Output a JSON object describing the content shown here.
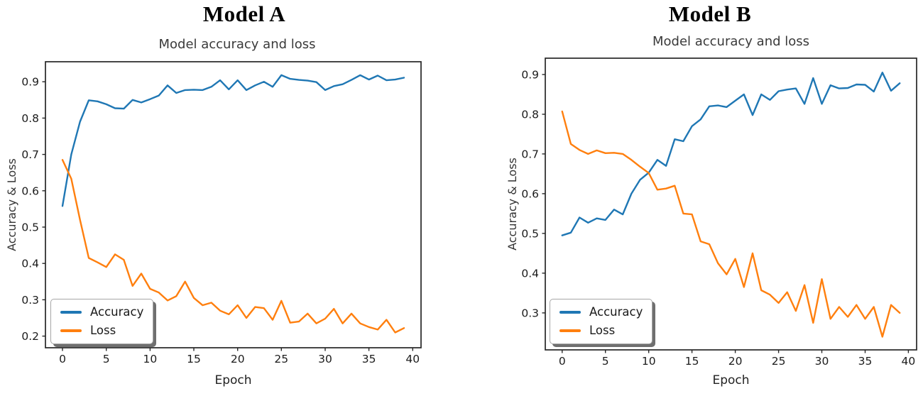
{
  "figure": {
    "background": "#ffffff",
    "spine_color": "#262626",
    "tick_label_color": "#1c1c1c"
  },
  "chart_data": [
    {
      "id": "model-a",
      "type": "line",
      "figure_title": "Model A",
      "title": "Model accuracy and loss",
      "xlabel": "Epoch",
      "ylabel": "Accuracy & Loss",
      "grid": false,
      "legend_position": "lower left",
      "xlim": [
        -1.95,
        40.95
      ],
      "ylim": [
        0.168,
        0.955
      ],
      "xticks": [
        0,
        5,
        10,
        15,
        20,
        25,
        30,
        35,
        40
      ],
      "yticks": [
        0.2,
        0.3,
        0.4,
        0.5,
        0.6,
        0.7,
        0.8,
        0.9
      ],
      "ytick_labels": [
        "0.2",
        "0.3",
        "0.4",
        "0.5",
        "0.6",
        "0.7",
        "0.8",
        "0.9"
      ],
      "x": [
        0,
        1,
        2,
        3,
        4,
        5,
        6,
        7,
        8,
        9,
        10,
        11,
        12,
        13,
        14,
        15,
        16,
        17,
        18,
        19,
        20,
        21,
        22,
        23,
        24,
        25,
        26,
        27,
        28,
        29,
        30,
        31,
        32,
        33,
        34,
        35,
        36,
        37,
        38,
        39
      ],
      "series": [
        {
          "name": "Accuracy",
          "color": "#1f77b4",
          "values": [
            0.558,
            0.7,
            0.79,
            0.849,
            0.846,
            0.838,
            0.827,
            0.826,
            0.85,
            0.843,
            0.852,
            0.862,
            0.89,
            0.869,
            0.877,
            0.878,
            0.877,
            0.886,
            0.904,
            0.879,
            0.904,
            0.877,
            0.89,
            0.9,
            0.886,
            0.918,
            0.908,
            0.905,
            0.903,
            0.899,
            0.877,
            0.888,
            0.893,
            0.905,
            0.918,
            0.906,
            0.917,
            0.904,
            0.906,
            0.911
          ]
        },
        {
          "name": "Loss",
          "color": "#ff7f0e",
          "values": [
            0.685,
            0.633,
            0.52,
            0.415,
            0.403,
            0.39,
            0.425,
            0.41,
            0.338,
            0.372,
            0.33,
            0.32,
            0.298,
            0.31,
            0.35,
            0.305,
            0.285,
            0.292,
            0.27,
            0.26,
            0.285,
            0.25,
            0.28,
            0.277,
            0.245,
            0.297,
            0.237,
            0.24,
            0.262,
            0.235,
            0.248,
            0.275,
            0.235,
            0.262,
            0.235,
            0.225,
            0.218,
            0.245,
            0.21,
            0.222
          ]
        }
      ]
    },
    {
      "id": "model-b",
      "type": "line",
      "figure_title": "Model B",
      "title": "Model accuracy and loss",
      "xlabel": "Epoch",
      "ylabel": "Accuracy & Loss",
      "grid": false,
      "legend_position": "lower left",
      "xlim": [
        -1.95,
        40.95
      ],
      "ylim": [
        0.207,
        0.941
      ],
      "xticks": [
        0,
        5,
        10,
        15,
        20,
        25,
        30,
        35,
        40
      ],
      "yticks": [
        0.3,
        0.4,
        0.5,
        0.6,
        0.7,
        0.8,
        0.9
      ],
      "ytick_labels": [
        "0.3",
        "0.4",
        "0.5",
        "0.6",
        "0.7",
        "0.8",
        "0.9"
      ],
      "x": [
        0,
        1,
        2,
        3,
        4,
        5,
        6,
        7,
        8,
        9,
        10,
        11,
        12,
        13,
        14,
        15,
        16,
        17,
        18,
        19,
        20,
        21,
        22,
        23,
        24,
        25,
        26,
        27,
        28,
        29,
        30,
        31,
        32,
        33,
        34,
        35,
        36,
        37,
        38,
        39
      ],
      "series": [
        {
          "name": "Accuracy",
          "color": "#1f77b4",
          "values": [
            0.495,
            0.502,
            0.54,
            0.527,
            0.538,
            0.534,
            0.56,
            0.548,
            0.6,
            0.635,
            0.653,
            0.685,
            0.67,
            0.737,
            0.732,
            0.77,
            0.787,
            0.82,
            0.822,
            0.818,
            0.834,
            0.85,
            0.798,
            0.85,
            0.836,
            0.858,
            0.862,
            0.865,
            0.826,
            0.891,
            0.826,
            0.873,
            0.865,
            0.866,
            0.875,
            0.874,
            0.857,
            0.905,
            0.859,
            0.878
          ]
        },
        {
          "name": "Loss",
          "color": "#ff7f0e",
          "values": [
            0.807,
            0.725,
            0.71,
            0.7,
            0.709,
            0.702,
            0.703,
            0.7,
            0.685,
            0.668,
            0.652,
            0.61,
            0.613,
            0.62,
            0.55,
            0.548,
            0.48,
            0.473,
            0.425,
            0.397,
            0.436,
            0.365,
            0.45,
            0.357,
            0.346,
            0.325,
            0.352,
            0.305,
            0.37,
            0.275,
            0.385,
            0.285,
            0.315,
            0.29,
            0.32,
            0.285,
            0.315,
            0.24,
            0.32,
            0.3
          ]
        }
      ]
    }
  ]
}
